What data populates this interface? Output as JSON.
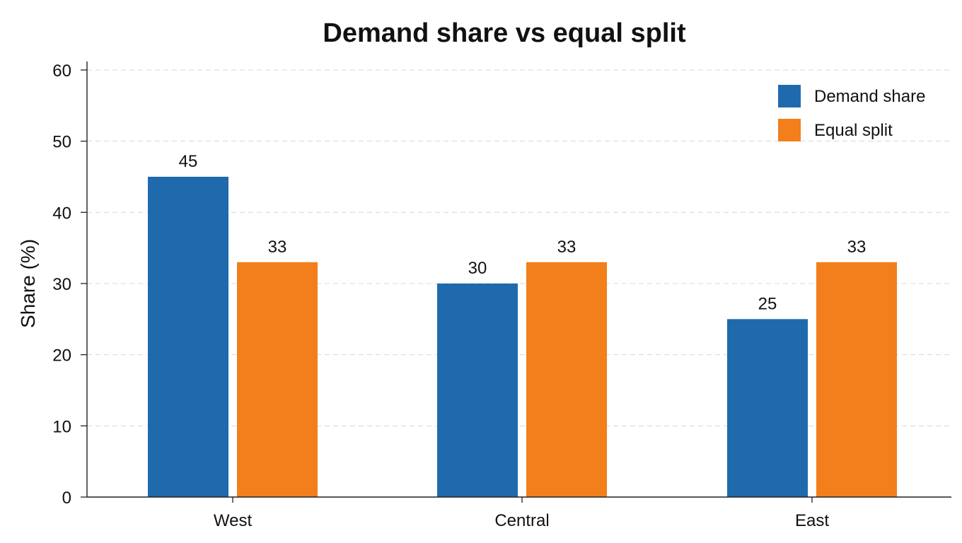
{
  "chart_data": {
    "type": "bar",
    "title": "Demand share vs equal split",
    "xlabel": "",
    "ylabel": "Share (%)",
    "categories": [
      "West",
      "Central",
      "East"
    ],
    "series": [
      {
        "name": "Demand share",
        "values": [
          45,
          30,
          25
        ],
        "color": "#1f6aad"
      },
      {
        "name": "Equal split",
        "values": [
          33,
          33,
          33
        ],
        "color": "#f27f1b"
      }
    ],
    "ylim": [
      0,
      60
    ],
    "yticks": [
      0,
      10,
      20,
      30,
      40,
      50,
      60
    ],
    "grid": true,
    "legend_position": "top-right"
  }
}
